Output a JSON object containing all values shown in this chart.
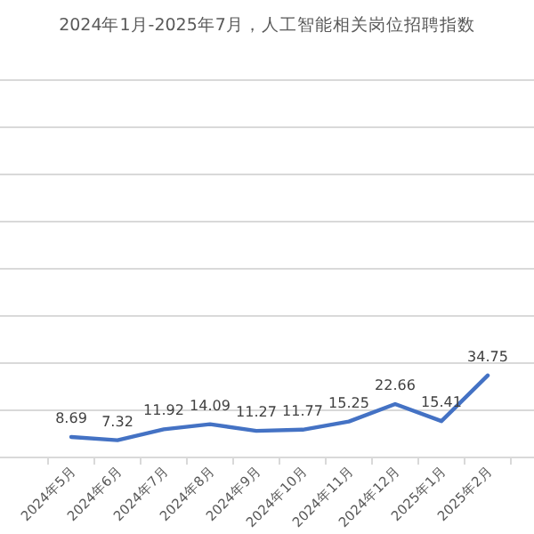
{
  "chart_data": {
    "type": "line",
    "title": "2024年1月-2025年7月，人工智能相关岗位招聘指数",
    "categories": [
      "2024年5月",
      "2024年6月",
      "2024年7月",
      "2024年8月",
      "2024年9月",
      "2024年10月",
      "2024年11月",
      "2024年12月",
      "2025年1月",
      "2025年2月"
    ],
    "series": [
      {
        "color": "#4472c4",
        "values": [
          8.69,
          7.32,
          11.92,
          14.09,
          11.27,
          11.77,
          15.25,
          22.66,
          15.41,
          34.75
        ]
      }
    ],
    "data_labels": true,
    "ylim": [
      0,
      160
    ],
    "yticks": [
      {
        "value": 0,
        "label": null
      },
      {
        "value": 20,
        "label": null
      },
      {
        "value": 40,
        "label": null
      },
      {
        "value": 60,
        "label": null
      },
      {
        "value": 80,
        "label": null
      },
      {
        "value": 100,
        "label": null
      },
      {
        "value": 120,
        "label": null
      },
      {
        "value": 140,
        "label": null
      },
      {
        "value": 160,
        "label": null
      }
    ],
    "grid": "y",
    "marker": "none",
    "line_style": "solid"
  }
}
